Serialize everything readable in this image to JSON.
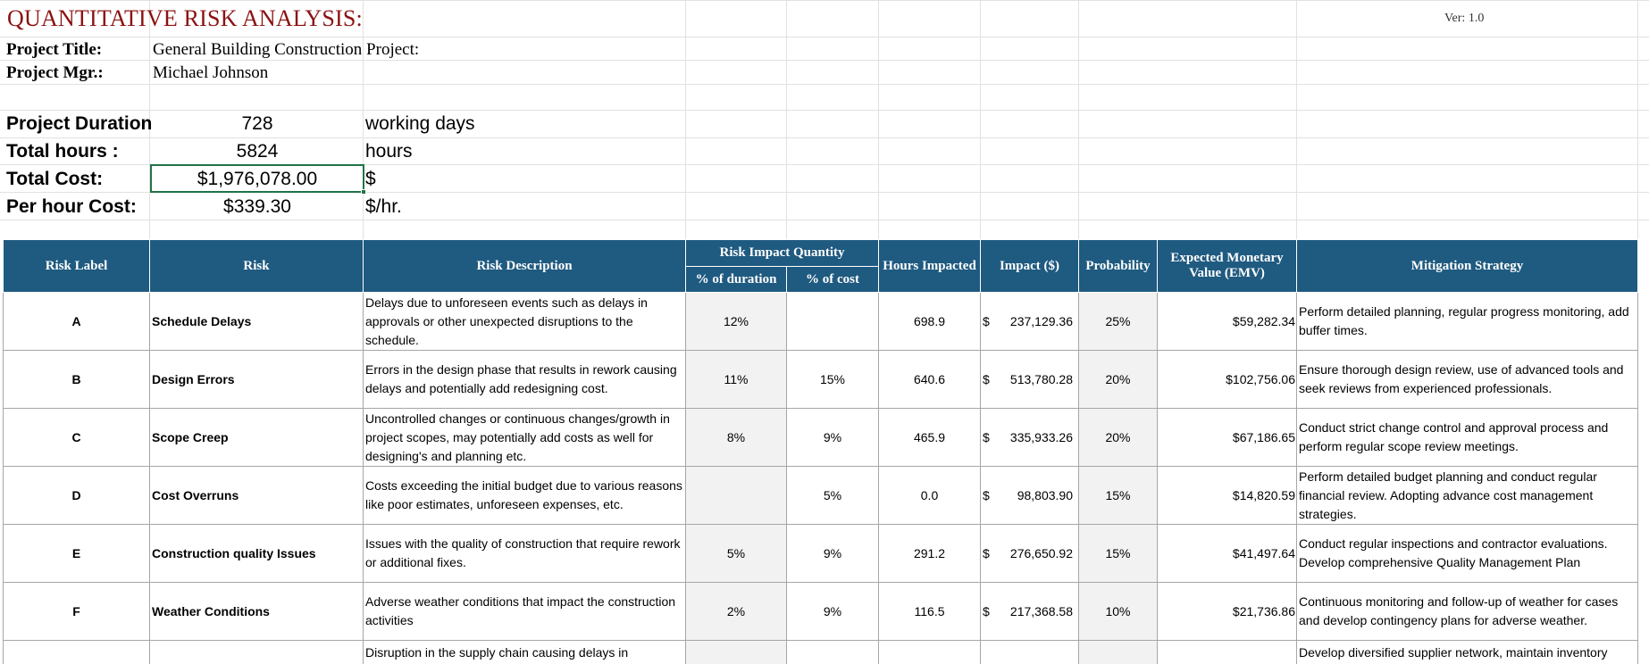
{
  "header": {
    "title": "QUANTITATIVE RISK ANALYSIS:",
    "version": "Ver: 1.0",
    "project_title_label": "Project Title:",
    "project_title_value": "General Building Construction Project:",
    "project_mgr_label": "Project Mgr.:",
    "project_mgr_value": "Michael Johnson"
  },
  "metrics": [
    {
      "label": "Project Duration",
      "value": "728",
      "unit": "working days"
    },
    {
      "label": "Total hours :",
      "value": "5824",
      "unit": "hours"
    },
    {
      "label": "Total Cost:",
      "value": "$1,976,078.00",
      "unit": "$"
    },
    {
      "label": "Per hour Cost:",
      "value": "$339.30",
      "unit": "$/hr."
    }
  ],
  "table": {
    "headers": {
      "risk_label": "Risk Label",
      "risk": "Risk",
      "risk_description": "Risk Description",
      "risk_impact_quantity": "Risk Impact Quantity",
      "pct_duration": "% of duration",
      "pct_cost": "% of cost",
      "hours_impacted": "Hours Impacted",
      "impact": "Impact ($)",
      "probability": "Probability",
      "emv": "Expected Monetary Value (EMV)",
      "mitigation": "Mitigation Strategy"
    },
    "rows": [
      {
        "label": "A",
        "risk": "Schedule Delays",
        "description": "Delays due to unforeseen events such as delays in approvals or other unexpected disruptions to the schedule.",
        "pct_duration": "12%",
        "pct_cost": "",
        "hours": "698.9",
        "impact_sym": "$",
        "impact": "237,129.36",
        "probability": "25%",
        "emv": "$59,282.34",
        "mitigation": "Perform detailed planning, regular progress monitoring, add buffer times."
      },
      {
        "label": "B",
        "risk": "Design Errors",
        "description": "Errors in the design phase that results in rework causing delays and potentially add redesigning cost.",
        "pct_duration": "11%",
        "pct_cost": "15%",
        "hours": "640.6",
        "impact_sym": "$",
        "impact": "513,780.28",
        "probability": "20%",
        "emv": "$102,756.06",
        "mitigation": "Ensure thorough design review, use of advanced tools and seek reviews from experienced professionals."
      },
      {
        "label": "C",
        "risk": "Scope Creep",
        "description": "Uncontrolled changes or continuous changes/growth in project scopes, may potentially add costs as well for designing's and planning etc.",
        "pct_duration": "8%",
        "pct_cost": "9%",
        "hours": "465.9",
        "impact_sym": "$",
        "impact": "335,933.26",
        "probability": "20%",
        "emv": "$67,186.65",
        "mitigation": "Conduct strict change control and approval process and perform regular scope review meetings."
      },
      {
        "label": "D",
        "risk": "Cost Overruns",
        "description": "Costs exceeding the initial budget due to various reasons like poor estimates, unforeseen expenses, etc.",
        "pct_duration": "",
        "pct_cost": "5%",
        "hours": "0.0",
        "impact_sym": "$",
        "impact": "98,803.90",
        "probability": "15%",
        "emv": "$14,820.59",
        "mitigation": "Perform detailed budget planning and conduct regular financial review. Adopting advance cost management strategies."
      },
      {
        "label": "E",
        "risk": "Construction quality Issues",
        "description": "Issues with the quality of construction that require rework or additional fixes.",
        "pct_duration": "5%",
        "pct_cost": "9%",
        "hours": "291.2",
        "impact_sym": "$",
        "impact": "276,650.92",
        "probability": "15%",
        "emv": "$41,497.64",
        "mitigation": "Conduct regular inspections and contractor evaluations. Develop comprehensive Quality Management Plan"
      },
      {
        "label": "F",
        "risk": "Weather Conditions",
        "description": "Adverse weather conditions that impact the construction activities",
        "pct_duration": "2%",
        "pct_cost": "9%",
        "hours": "116.5",
        "impact_sym": "$",
        "impact": "217,368.58",
        "probability": "10%",
        "emv": "$21,736.86",
        "mitigation": "Continuous monitoring and follow-up of weather for cases and develop contingency plans for adverse weather."
      }
    ],
    "partial_row": {
      "description": "Disruption in the supply chain causing delays in",
      "mitigation": "Develop diversified supplier network, maintain inventory"
    }
  }
}
